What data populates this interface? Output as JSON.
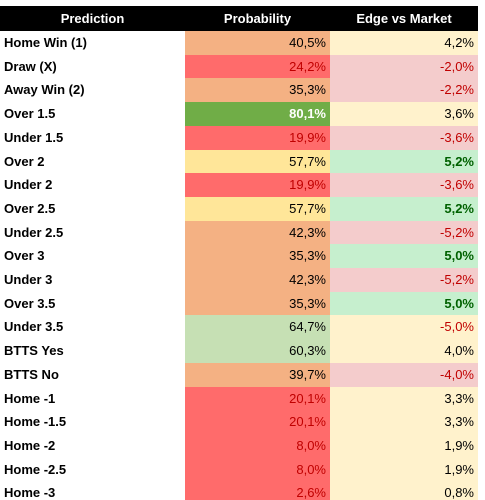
{
  "table": {
    "header": [
      "Prediction",
      "Probability",
      "Edge vs Market"
    ],
    "rows": [
      [
        "Home Win (1)",
        "40,5%",
        "4,2%"
      ],
      [
        "Draw (X)",
        "24,2%",
        "-2,0%"
      ],
      [
        "Away Win (2)",
        "35,3%",
        "-2,2%"
      ],
      [
        "Over 1.5",
        "80,1%",
        "3,6%"
      ],
      [
        "Under 1.5",
        "19,9%",
        "-3,6%"
      ],
      [
        "Over 2",
        "57,7%",
        "5,2%"
      ],
      [
        "Under 2",
        "19,9%",
        "-3,6%"
      ],
      [
        "Over 2.5",
        "57,7%",
        "5,2%"
      ],
      [
        "Under 2.5",
        "42,3%",
        "-5,2%"
      ],
      [
        "Over 3",
        "35,3%",
        "5,0%"
      ],
      [
        "Under 3",
        "42,3%",
        "-5,2%"
      ],
      [
        "Over 3.5",
        "35,3%",
        "5,0%"
      ],
      [
        "Under 3.5",
        "64,7%",
        "-5,0%"
      ],
      [
        "BTTS Yes",
        "60,3%",
        "4,0%"
      ],
      [
        "BTTS No",
        "39,7%",
        "-4,0%"
      ],
      [
        "Home -1",
        "20,1%",
        "3,3%"
      ],
      [
        "Home -1.5",
        "20,1%",
        "3,3%"
      ],
      [
        "Home -2",
        "8,0%",
        "1,9%"
      ],
      [
        "Home -2.5",
        "8,0%",
        "1,9%"
      ],
      [
        "Home -3",
        "2,6%",
        "0,8%"
      ]
    ]
  }
}
